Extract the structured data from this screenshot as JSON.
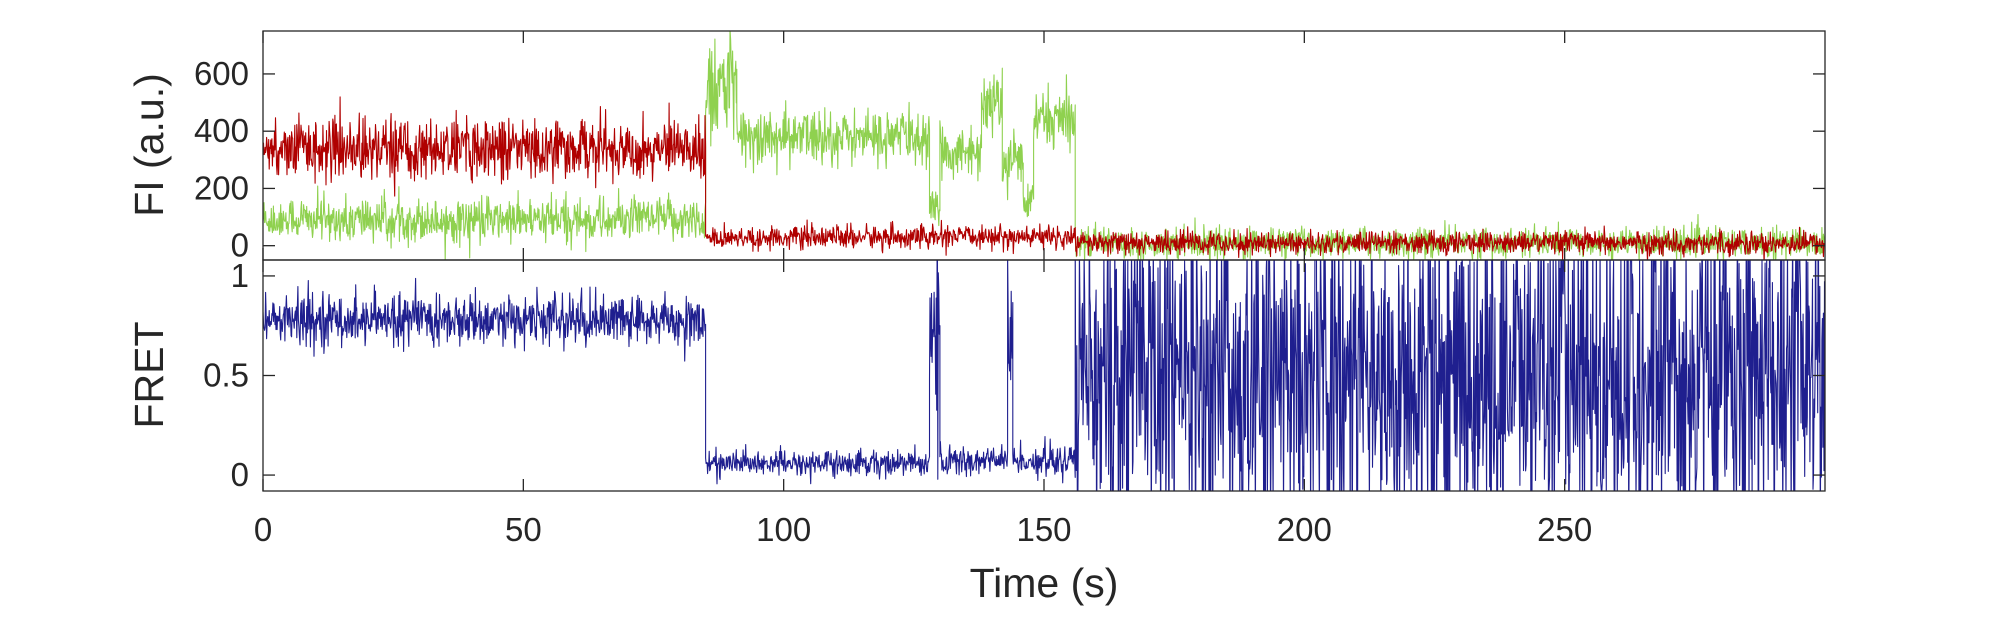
{
  "chart_data": [
    {
      "panel": "top",
      "type": "line",
      "ylabel": "FI (a.u.)",
      "xlim": [
        0,
        300
      ],
      "ylim": [
        -50,
        750
      ],
      "yticks": [
        0,
        200,
        400,
        600
      ],
      "grid": false,
      "series": [
        {
          "color": "#8fd14f",
          "segments": [
            {
              "x": [
                0,
                85
              ],
              "mean": 90,
              "noise": 60
            },
            {
              "x": [
                85,
                91
              ],
              "mean": 560,
              "noise": 150
            },
            {
              "x": [
                91,
                128
              ],
              "mean": 380,
              "noise": 75
            },
            {
              "x": [
                128,
                130
              ],
              "mean": 120,
              "noise": 60
            },
            {
              "x": [
                130,
                138
              ],
              "mean": 330,
              "noise": 70
            },
            {
              "x": [
                138,
                142
              ],
              "mean": 500,
              "noise": 80
            },
            {
              "x": [
                142,
                146
              ],
              "mean": 300,
              "noise": 70
            },
            {
              "x": [
                146,
                148
              ],
              "mean": 150,
              "noise": 50
            },
            {
              "x": [
                148,
                156
              ],
              "mean": 440,
              "noise": 80
            },
            {
              "x": [
                156,
                300
              ],
              "mean": 10,
              "noise": 40
            }
          ]
        },
        {
          "color": "#b00000",
          "segments": [
            {
              "x": [
                0,
                85
              ],
              "mean": 340,
              "noise": 80
            },
            {
              "x": [
                85,
                156
              ],
              "mean": 30,
              "noise": 30
            },
            {
              "x": [
                156,
                300
              ],
              "mean": 10,
              "noise": 30
            }
          ]
        }
      ]
    },
    {
      "panel": "bottom",
      "type": "line",
      "xlabel": "Time (s)",
      "ylabel": "FRET",
      "xlim": [
        0,
        300
      ],
      "ylim": [
        -0.08,
        1.08
      ],
      "yticks": [
        0,
        0.5,
        1
      ],
      "xticks": [
        0,
        50,
        100,
        150,
        200,
        250
      ],
      "grid": false,
      "series": [
        {
          "color": "#1f1f8f",
          "segments": [
            {
              "x": [
                0,
                85
              ],
              "mean": 0.78,
              "noise": 0.1
            },
            {
              "x": [
                85,
                128
              ],
              "mean": 0.06,
              "noise": 0.05
            },
            {
              "x": [
                128,
                130
              ],
              "mean": 0.7,
              "noise": 0.45
            },
            {
              "x": [
                130,
                143
              ],
              "mean": 0.07,
              "noise": 0.06
            },
            {
              "x": [
                143,
                144
              ],
              "mean": 0.7,
              "noise": 0.4
            },
            {
              "x": [
                144,
                156
              ],
              "mean": 0.07,
              "noise": 0.06
            },
            {
              "x": [
                156,
                300
              ],
              "mean": 0.5,
              "noise": 0.7
            }
          ]
        }
      ]
    }
  ],
  "tick_labels": {
    "top_y": [
      "0",
      "200",
      "400",
      "600"
    ],
    "bottom_y": [
      "0",
      "0.5",
      "1"
    ],
    "x": [
      "0",
      "50",
      "100",
      "150",
      "200",
      "250"
    ]
  }
}
